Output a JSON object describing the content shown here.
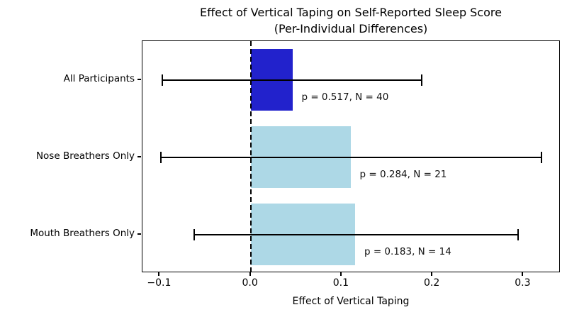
{
  "figure": {
    "title": "Effect of Vertical Taping on Self-Reported Sleep Score",
    "subtitle": "(Per-Individual Differences)",
    "xlabel": "Effect of Vertical Taping"
  },
  "chart_data": {
    "type": "bar",
    "orientation": "horizontal",
    "title": "Effect of Vertical Taping on Self-Reported Sleep Score",
    "subtitle": "(Per-Individual Differences)",
    "xlabel": "Effect of Vertical Taping",
    "ylabel": "",
    "xlim": [
      -0.119,
      0.341
    ],
    "x_ticks": [
      -0.1,
      0.0,
      0.1,
      0.2,
      0.3
    ],
    "x_tick_labels": [
      "−0.1",
      "0.0",
      "0.1",
      "0.2",
      "0.3"
    ],
    "grid": false,
    "legend": "none",
    "zero_line": {
      "x": 0.0,
      "style": "dashed",
      "color": "#000000"
    },
    "categories": [
      "All Participants",
      "Nose Breathers Only",
      "Mouth Breathers Only"
    ],
    "rows": [
      {
        "label": "All Participants",
        "value": 0.046,
        "ci_low": -0.097,
        "ci_high": 0.188,
        "p_value": 0.517,
        "n": 40,
        "annotation": "p = 0.517, N = 40",
        "color": "#2222cc"
      },
      {
        "label": "Nose Breathers Only",
        "value": 0.11,
        "ci_low": -0.099,
        "ci_high": 0.32,
        "p_value": 0.284,
        "n": 21,
        "annotation": "p = 0.284, N = 21",
        "color": "#add8e6"
      },
      {
        "label": "Mouth Breathers Only",
        "value": 0.115,
        "ci_low": -0.062,
        "ci_high": 0.294,
        "p_value": 0.183,
        "n": 14,
        "annotation": "p = 0.183, N = 14",
        "color": "#add8e6"
      }
    ],
    "colors": {
      "highlight_bar": "#2222cc",
      "default_bar": "#add8e6",
      "error_bar": "#000000",
      "spine": "#000000",
      "text": "#000000",
      "background": "#ffffff"
    }
  }
}
